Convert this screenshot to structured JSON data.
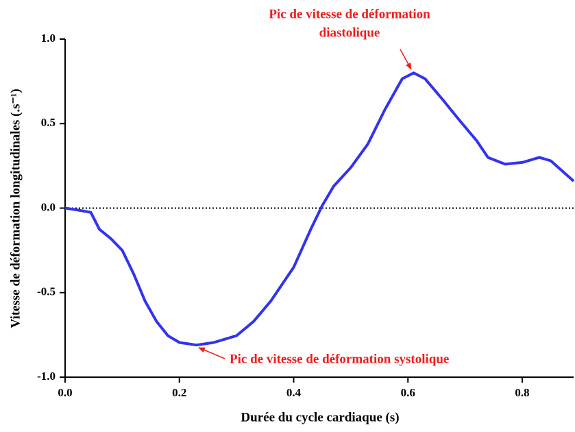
{
  "chart_data": {
    "type": "line",
    "xlabel": "Durée du cycle cardiaque (s)",
    "ylabel": "Vitesse de déformation longitudinales (.s⁻¹)",
    "xlim": [
      0,
      0.89
    ],
    "ylim": [
      -1,
      1
    ],
    "xticks": [
      {
        "value": 0,
        "label": "0.0"
      },
      0.2,
      0.4,
      0.6,
      0.8
    ],
    "yticks": [
      {
        "value": -1,
        "label": "-1.0"
      },
      -0.5,
      {
        "value": 0,
        "label": "0.0"
      },
      0.5,
      {
        "value": 1,
        "label": "1.0"
      }
    ],
    "hline": 0,
    "series": [
      {
        "color": "#3333ee",
        "x": [
          0,
          0.02,
          0.045,
          0.06,
          0.08,
          0.1,
          0.12,
          0.14,
          0.16,
          0.18,
          0.2,
          0.23,
          0.26,
          0.3,
          0.33,
          0.36,
          0.4,
          0.43,
          0.45,
          0.47,
          0.5,
          0.53,
          0.56,
          0.59,
          0.61,
          0.63,
          0.66,
          0.69,
          0.72,
          0.74,
          0.77,
          0.8,
          0.83,
          0.85,
          0.89
        ],
        "values": [
          0,
          -0.01,
          -0.025,
          -0.125,
          -0.18,
          -0.25,
          -0.39,
          -0.55,
          -0.67,
          -0.755,
          -0.795,
          -0.81,
          -0.795,
          -0.755,
          -0.67,
          -0.55,
          -0.35,
          -0.125,
          0.015,
          0.13,
          0.24,
          0.38,
          0.585,
          0.765,
          0.8,
          0.765,
          0.645,
          0.52,
          0.4,
          0.3,
          0.26,
          0.27,
          0.3,
          0.28,
          0.16
        ]
      }
    ],
    "annotations": [
      {
        "lines": [
          "Pic de vitesse de déformation",
          "diastolique"
        ],
        "xy": [
          0.61,
          0.8
        ]
      },
      {
        "lines": [
          "Pic de vitesse de déformation systolique"
        ],
        "xy": [
          0.23,
          -0.81
        ]
      }
    ]
  }
}
